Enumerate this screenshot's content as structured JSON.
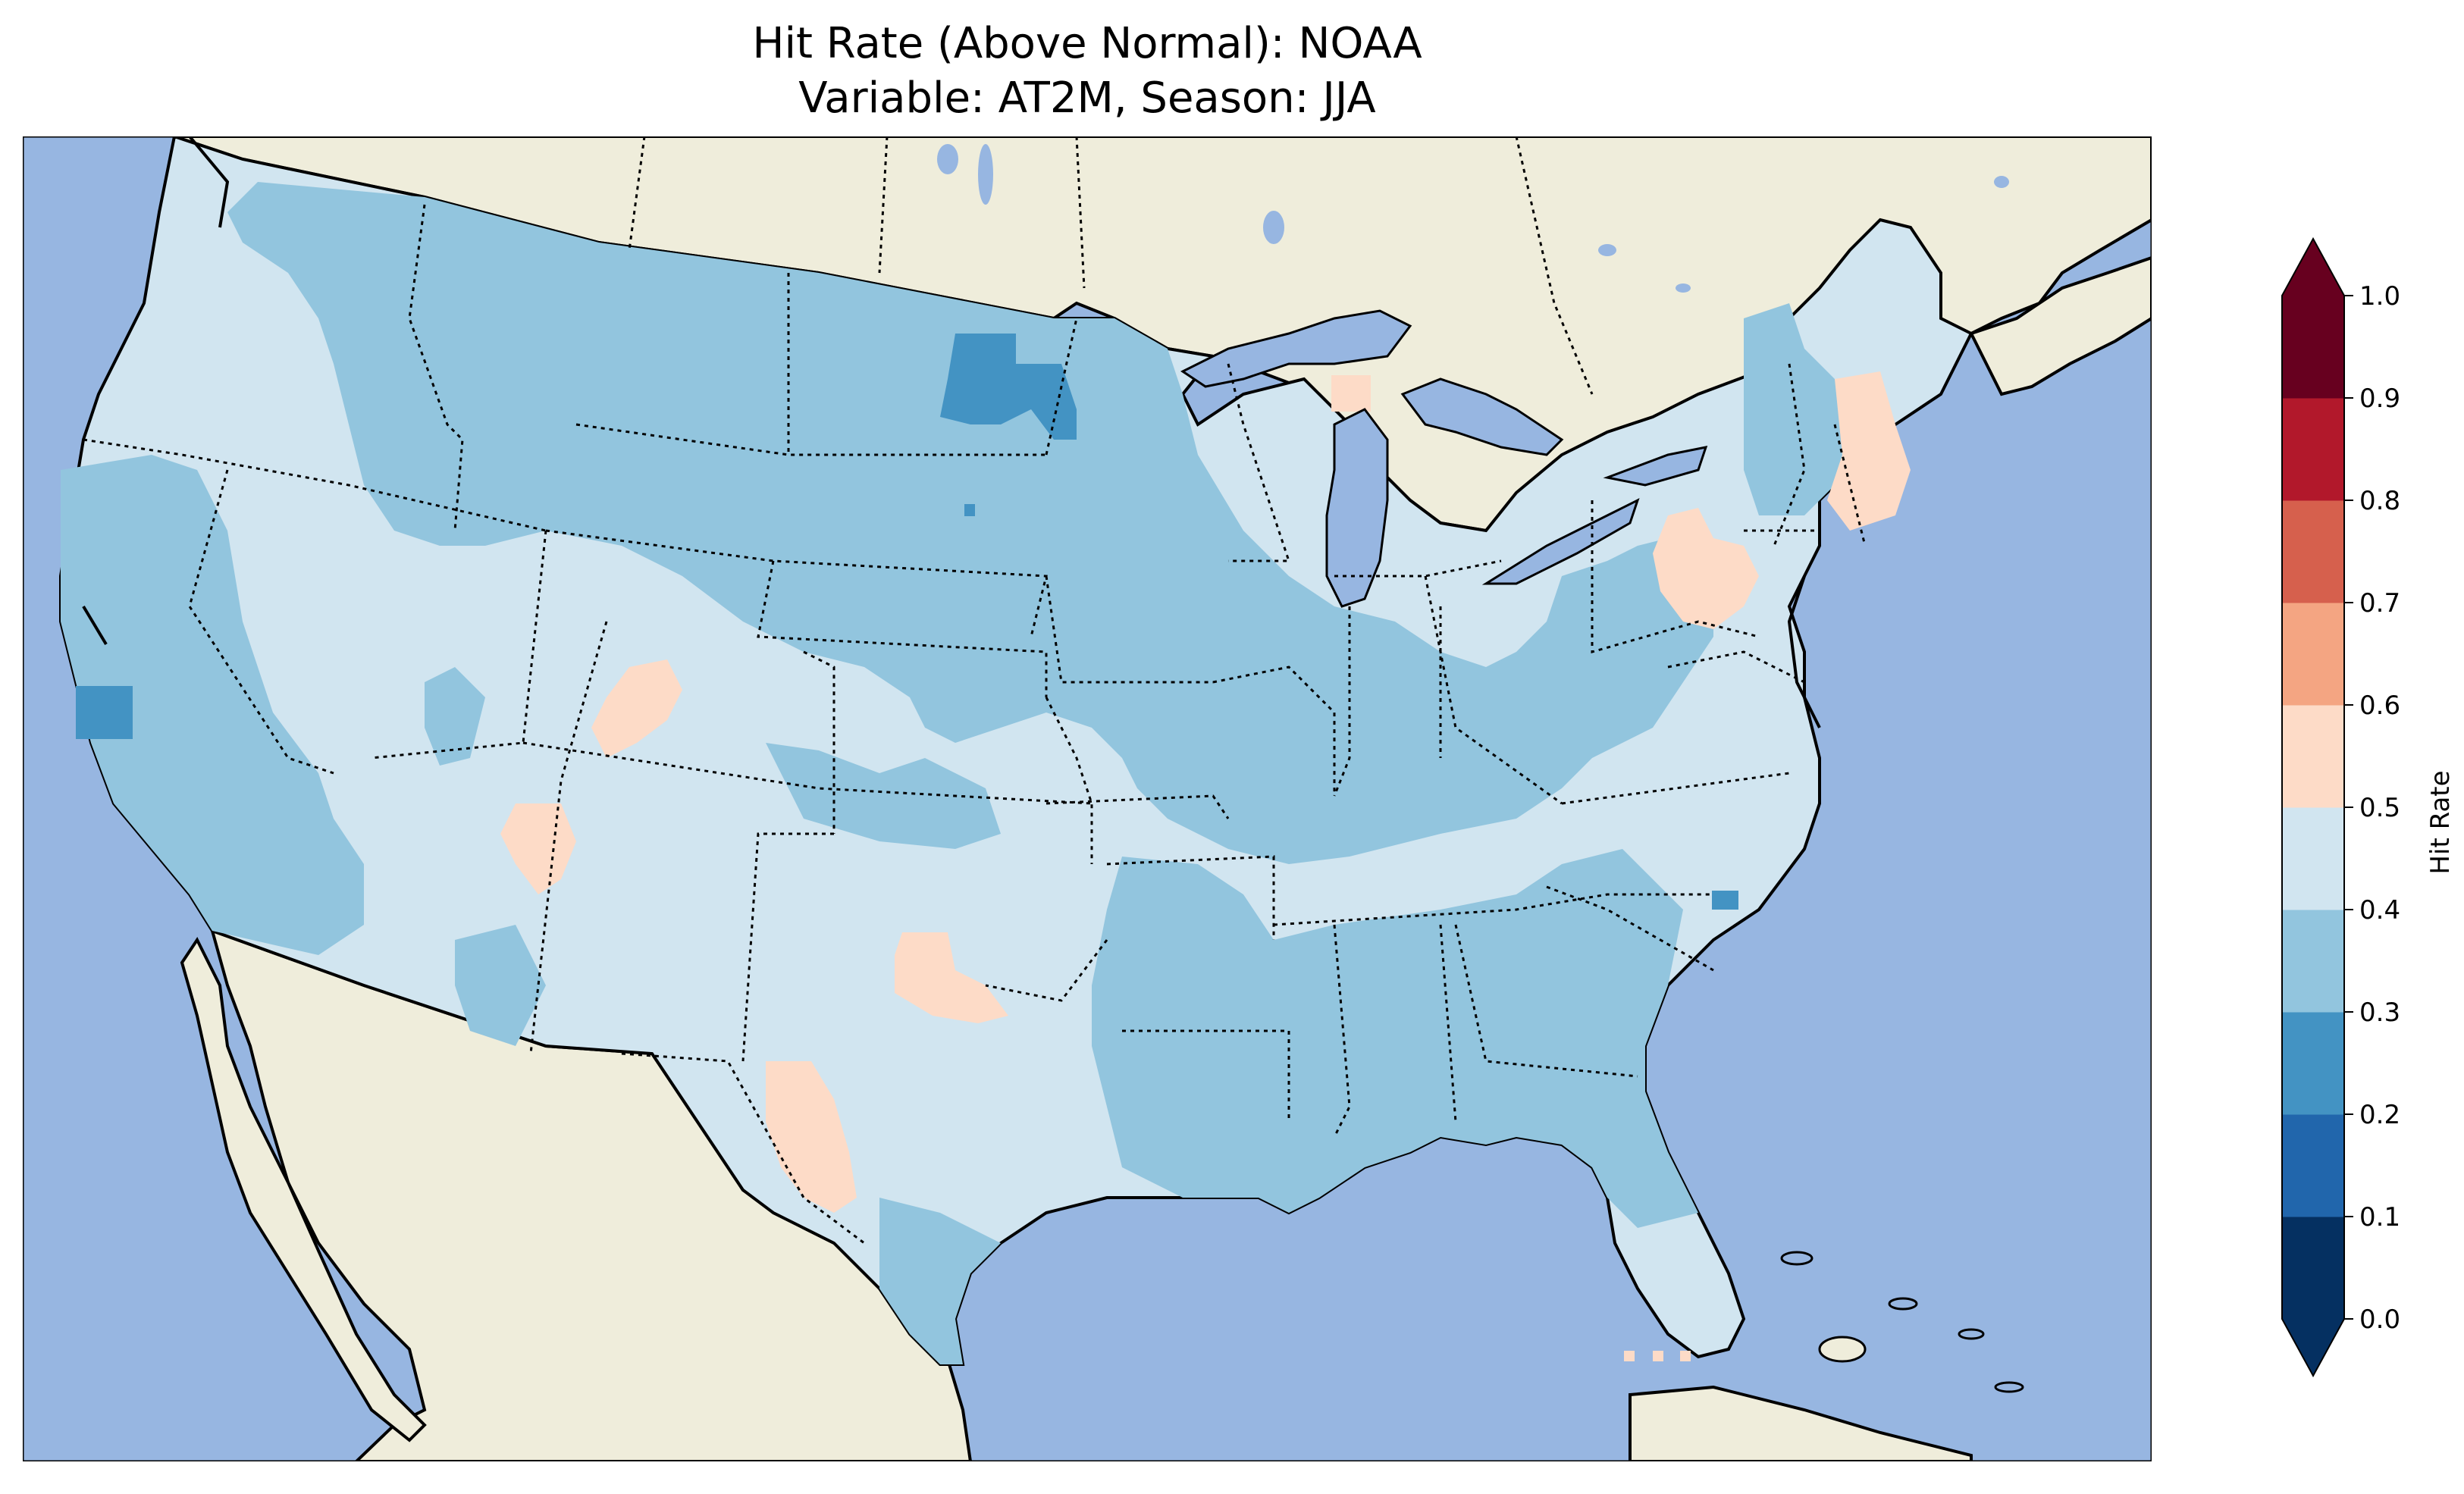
{
  "title": {
    "line1": "Hit Rate (Above Normal): NOAA",
    "line2": "Variable: AT2M, Season: JJA"
  },
  "colorbar": {
    "label": "Hit Rate",
    "ticks": [
      "0.0",
      "0.1",
      "0.2",
      "0.3",
      "0.4",
      "0.5",
      "0.6",
      "0.7",
      "0.8",
      "0.9",
      "1.0"
    ],
    "colors": [
      "#053061",
      "#2166ac",
      "#4393c3",
      "#92c5de",
      "#d1e5f0",
      "#fddbc7",
      "#f4a582",
      "#d6604d",
      "#b2182b",
      "#67001f"
    ],
    "extend_low_color": "#053061",
    "extend_high_color": "#67001f"
  },
  "map": {
    "ocean_color": "#97b6e1",
    "land_color": "#efeddb",
    "dominant_values": "0.3-0.5"
  }
}
